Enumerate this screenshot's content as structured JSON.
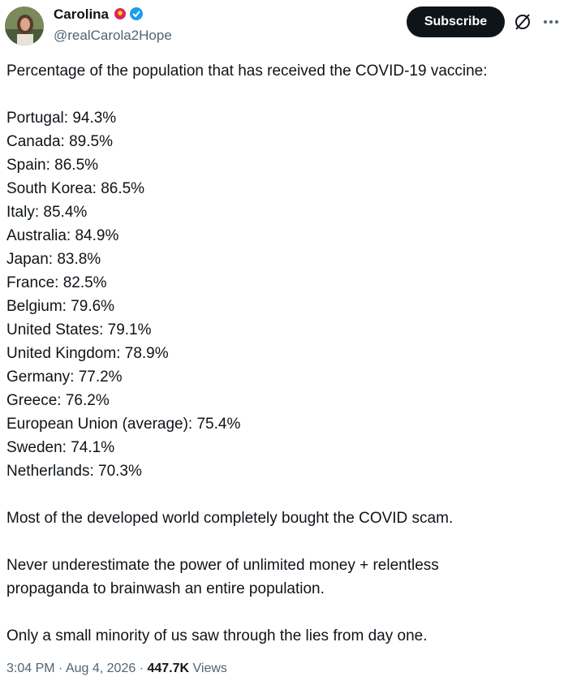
{
  "post": {
    "author": {
      "name": "Carolina",
      "handle": "@realCarola2Hope"
    },
    "subscribe": "Subscribe",
    "intro": "Percentage of the population that has received the COVID-19 vaccine:",
    "list": [
      "Portugal: 94.3%",
      "Canada: 89.5%",
      "Spain: 86.5%",
      "South Korea: 86.5%",
      "Italy: 85.4%",
      "Australia: 84.9%",
      "Japan: 83.8%",
      "France: 82.5%",
      "Belgium: 79.6%",
      "United States: 79.1%",
      "United Kingdom: 78.9%",
      "Germany: 77.2%",
      "Greece: 76.2%",
      "European Union (average): 75.4%",
      "Sweden: 74.1%",
      "Netherlands: 70.3%"
    ],
    "paragraphs": [
      "Most of the developed world completely bought the COVID scam.",
      "Never underestimate the power of unlimited money + relentless propaganda to brainwash an entire population.",
      "Only a small minority of us saw through the lies from day one."
    ],
    "meta": {
      "time": "3:04 PM",
      "separator": "·",
      "date": "Aug 4, 2026",
      "views": "447.7K",
      "views_label": "Views"
    }
  }
}
